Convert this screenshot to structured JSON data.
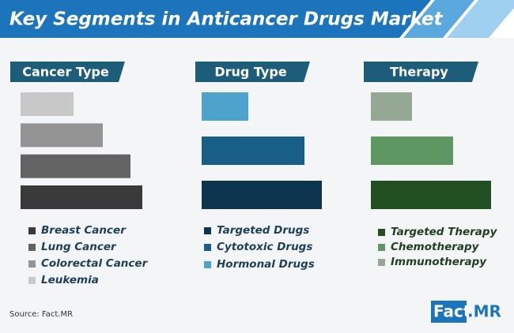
{
  "header": {
    "title": "Key Segments in Anticancer Drugs Market"
  },
  "chart_data": [
    {
      "type": "bar",
      "title": "Cancer Type",
      "categories": [
        "Breast Cancer",
        "Lung Cancer",
        "Colorectal Cancer",
        "Leukemia"
      ],
      "values": [
        154,
        139,
        104,
        67
      ],
      "colors": [
        "#3a3a3a",
        "#636363",
        "#949494",
        "#c8c8c8"
      ]
    },
    {
      "type": "bar",
      "title": "Drug Type",
      "categories": [
        "Targeted Drugs",
        "Cytotoxic Drugs",
        "Hormonal Drugs"
      ],
      "values": [
        152,
        130,
        59
      ],
      "colors": [
        "#0d3550",
        "#175f86",
        "#4ea3cc"
      ]
    },
    {
      "type": "bar",
      "title": "Therapy",
      "categories": [
        "Targeted Therapy",
        "Chemotherapy",
        "Immunotherapy"
      ],
      "values": [
        152,
        104,
        52
      ],
      "colors": [
        "#214f21",
        "#5f9762",
        "#95a894"
      ]
    }
  ],
  "source": "Source: Fact.MR",
  "logo": {
    "left": "Fact",
    "right": ".MR"
  }
}
